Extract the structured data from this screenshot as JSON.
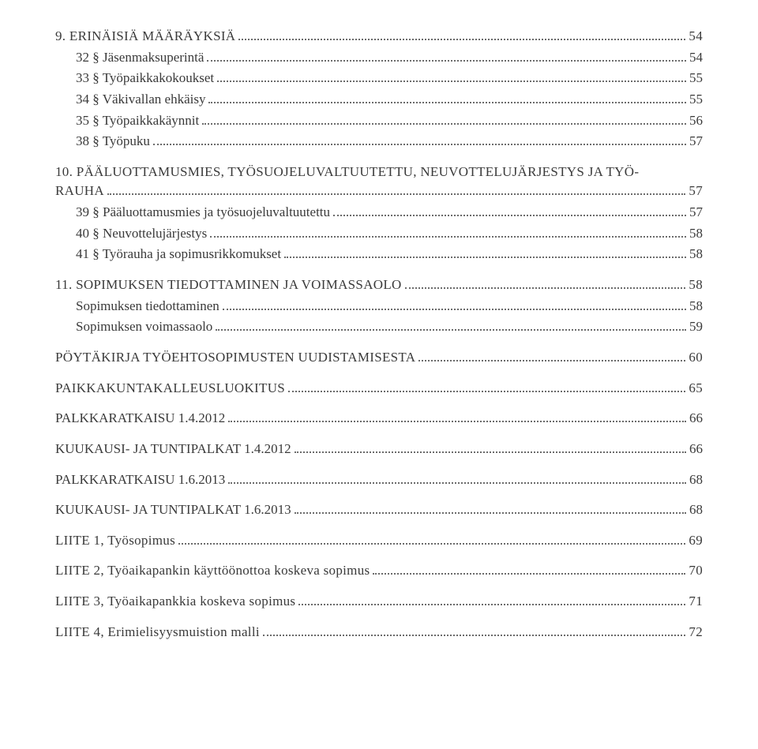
{
  "font_color": "#3a3a3a",
  "leader_color": "#6b6b6b",
  "background": "#ffffff",
  "base_fontsize": 17,
  "entries": [
    {
      "level": "section",
      "label": "9. ERINÄISIÄ MÄÄRÄYKSIÄ",
      "page": "54"
    },
    {
      "level": "sub",
      "label": "32 § Jäsenmaksuperintä",
      "page": "54"
    },
    {
      "level": "sub",
      "label": "33 § Työpaikkakokoukset",
      "page": "55"
    },
    {
      "level": "sub",
      "label": "34 § Väkivallan ehkäisy",
      "page": "55"
    },
    {
      "level": "sub",
      "label": "35 § Työpaikkakäynnit",
      "page": "56"
    },
    {
      "level": "sub",
      "label": "38 § Työpuku",
      "page": "57"
    },
    {
      "level": "section",
      "label": "10. PÄÄLUOTTAMUSMIES, TYÖSUOJELUVALTUUTETTU, NEUVOTTELUJÄRJESTYS JA TYÖ-RAUHA",
      "page": "57",
      "wrap": true
    },
    {
      "level": "sub",
      "label": "39 § Pääluottamusmies ja työsuojeluvaltuutettu",
      "page": "57"
    },
    {
      "level": "sub",
      "label": "40 § Neuvottelujärjestys",
      "page": "58"
    },
    {
      "level": "sub",
      "label": "41 § Työrauha ja sopimusrikkomukset",
      "page": "58"
    },
    {
      "level": "section",
      "label": "11. SOPIMUKSEN TIEDOTTAMINEN JA VOIMASSAOLO",
      "page": "58"
    },
    {
      "level": "sub",
      "label": "Sopimuksen tiedottaminen",
      "page": "58"
    },
    {
      "level": "sub",
      "label": "Sopimuksen voimassaolo",
      "page": "59"
    },
    {
      "level": "section",
      "label": "PÖYTÄKIRJA TYÖEHTOSOPIMUSTEN UUDISTAMISESTA",
      "page": "60"
    },
    {
      "level": "section",
      "label": "PAIKKAKUNTAKALLEUSLUOKITUS",
      "page": "65"
    },
    {
      "level": "top",
      "label": "PALKKARATKAISU 1.4.2012",
      "page": "66"
    },
    {
      "level": "top",
      "label": "KUUKAUSI- JA TUNTIPALKAT 1.4.2012",
      "page": "66"
    },
    {
      "level": "top",
      "label": "PALKKARATKAISU 1.6.2013",
      "page": "68"
    },
    {
      "level": "top",
      "label": "KUUKAUSI- JA TUNTIPALKAT 1.6.2013",
      "page": "68"
    },
    {
      "level": "section",
      "label": "LIITE 1, Työsopimus",
      "page": "69"
    },
    {
      "level": "section",
      "label": "LIITE 2, Työaikapankin käyttöönottoa koskeva sopimus",
      "page": "70"
    },
    {
      "level": "section",
      "label": "LIITE 3, Työaikapankkia koskeva sopimus",
      "page": "71"
    },
    {
      "level": "section",
      "label": "LIITE 4, Erimielisyysmuistion malli",
      "page": "72"
    }
  ]
}
